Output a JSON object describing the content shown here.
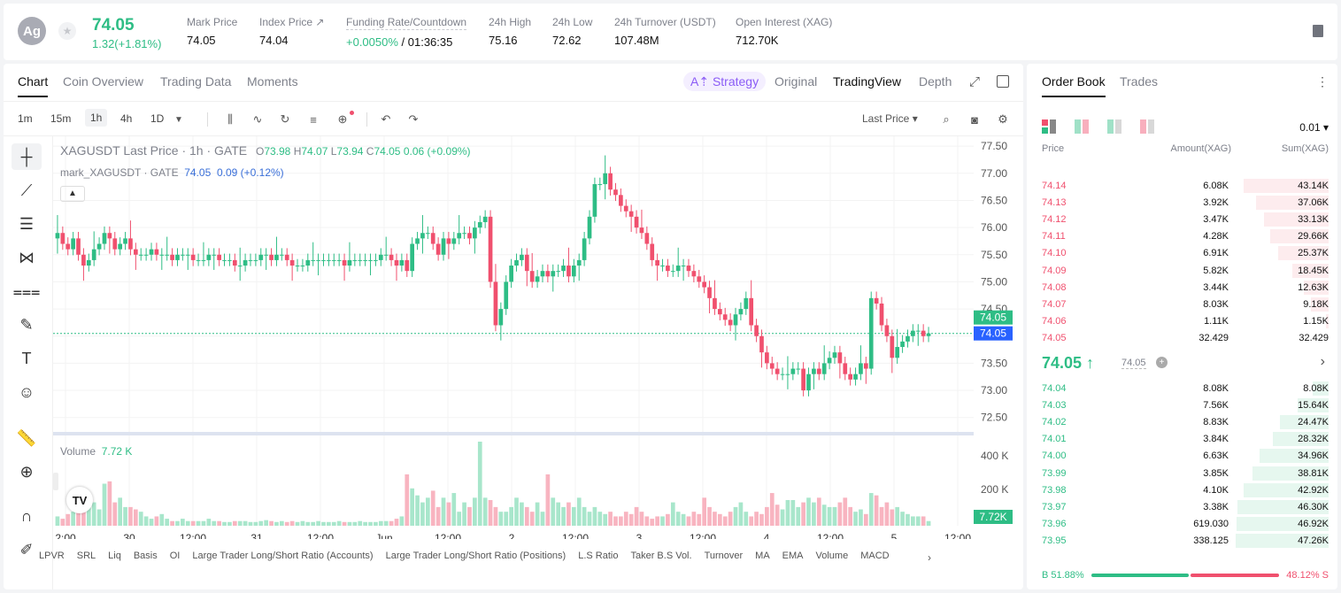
{
  "header": {
    "avatar": "Ag",
    "last_price": "74.05",
    "change": "1.32(+1.81%)",
    "stats": [
      {
        "label": "Mark Price",
        "value": "74.05"
      },
      {
        "label": "Index Price ↗",
        "value": "74.04"
      },
      {
        "label": "Funding Rate/Countdown",
        "value_green": "+0.0050%",
        "value": " / 01:36:35"
      },
      {
        "label": "24h High",
        "value": "75.16"
      },
      {
        "label": "24h Low",
        "value": "72.62"
      },
      {
        "label": "24h Turnover (USDT)",
        "value": "107.48M"
      },
      {
        "label": "Open Interest (XAG)",
        "value": "712.70K"
      }
    ]
  },
  "chart_tabs": [
    "Chart",
    "Coin Overview",
    "Trading Data",
    "Moments"
  ],
  "view_tabs": {
    "strategy": "A⇡ Strategy",
    "original": "Original",
    "tradingview": "TradingView",
    "depth": "Depth"
  },
  "timeframes": [
    "1m",
    "15m",
    "1h",
    "4h",
    "1D"
  ],
  "toolbar": {
    "price_type": "Last Price ▾"
  },
  "legend": {
    "title": "XAGUSDT Last Price · 1h · GATE",
    "o": "73.98",
    "h": "74.07",
    "l": "73.94",
    "c": "74.05",
    "chg": "0.06 (+0.09%)",
    "mark": "mark_XAGUSDT · GATE",
    "mark_val": "74.05",
    "mark_chg": "0.09 (+0.12%)",
    "volume_label": "Volume",
    "volume_val": "7.72 K"
  },
  "indicators": [
    "LPVR",
    "SRL",
    "Liq",
    "Basis",
    "OI",
    "Large Trader Long/Short Ratio (Accounts)",
    "Large Trader Long/Short Ratio (Positions)",
    "L.S Ratio",
    "Taker B.S Vol.",
    "Turnover",
    "MA",
    "EMA",
    "Volume",
    "MACD"
  ],
  "chart_data": {
    "type": "candlestick",
    "price_axis": [
      "77.50",
      "77.00",
      "76.50",
      "76.00",
      "75.50",
      "75.00",
      "74.50",
      "74.00",
      "73.50",
      "73.00",
      "72.50"
    ],
    "time_axis": [
      "2:00",
      "30",
      "12:00",
      "31",
      "12:00",
      "Jun",
      "12:00",
      "2",
      "12:00",
      "3",
      "12:00",
      "4",
      "12:00",
      "5",
      "12:00"
    ],
    "volume_axis": [
      "400 K",
      "200 K"
    ],
    "last_price_tag": "74.05",
    "mark_price_tag": "74.05",
    "volume_tag": "7.72K",
    "ylim": [
      72.3,
      77.6
    ],
    "closes": [
      75.9,
      75.7,
      75.6,
      75.8,
      75.5,
      75.3,
      75.4,
      75.6,
      75.7,
      75.9,
      75.8,
      75.6,
      75.7,
      75.8,
      75.6,
      75.5,
      75.5,
      75.5,
      75.6,
      75.5,
      75.5,
      75.5,
      75.4,
      75.5,
      75.5,
      75.5,
      75.4,
      75.4,
      75.4,
      75.5,
      75.5,
      75.4,
      75.4,
      75.4,
      75.3,
      75.3,
      75.4,
      75.4,
      75.4,
      75.5,
      75.5,
      75.4,
      75.5,
      75.5,
      75.4,
      75.3,
      75.3,
      75.3,
      75.4,
      75.4,
      75.4,
      75.4,
      75.4,
      75.4,
      75.4,
      75.3,
      75.4,
      75.4,
      75.4,
      75.4,
      75.4,
      75.4,
      75.5,
      75.5,
      75.4,
      75.3,
      75.4,
      75.2,
      75.7,
      75.8,
      75.9,
      75.9,
      75.7,
      75.5,
      75.8,
      75.7,
      75.8,
      75.9,
      75.9,
      75.8,
      76.0,
      76.1,
      76.2,
      75.0,
      74.2,
      74.5,
      75.0,
      75.3,
      75.4,
      75.5,
      75.2,
      75.0,
      75.1,
      75.2,
      75.1,
      75.2,
      75.2,
      75.3,
      75.1,
      75.3,
      75.4,
      75.8,
      76.2,
      76.8,
      76.8,
      77.0,
      76.7,
      76.6,
      76.4,
      76.3,
      76.2,
      76.0,
      75.9,
      75.7,
      75.4,
      75.3,
      75.3,
      75.2,
      75.2,
      75.3,
      75.3,
      75.2,
      75.1,
      75.0,
      74.9,
      74.7,
      74.5,
      74.4,
      74.3,
      74.2,
      74.4,
      74.5,
      74.7,
      74.2,
      74.0,
      73.7,
      73.5,
      73.4,
      73.3,
      73.3,
      73.3,
      73.4,
      73.4,
      73.0,
      73.3,
      73.4,
      73.3,
      73.5,
      73.6,
      73.7,
      73.5,
      73.3,
      73.2,
      73.3,
      73.5,
      73.4,
      74.7,
      74.6,
      74.2,
      74.0,
      73.6,
      73.8,
      73.9,
      74.0,
      74.1,
      74.1,
      74.0,
      74.05
    ],
    "volumes": [
      20,
      15,
      25,
      30,
      40,
      35,
      60,
      50,
      35,
      90,
      95,
      50,
      60,
      40,
      40,
      35,
      30,
      20,
      15,
      20,
      25,
      15,
      10,
      10,
      15,
      10,
      10,
      10,
      10,
      15,
      10,
      10,
      8,
      8,
      10,
      10,
      10,
      8,
      8,
      10,
      12,
      10,
      8,
      10,
      8,
      10,
      8,
      10,
      8,
      8,
      10,
      8,
      8,
      8,
      10,
      8,
      8,
      8,
      10,
      8,
      8,
      8,
      10,
      10,
      10,
      15,
      20,
      110,
      80,
      65,
      50,
      60,
      75,
      40,
      60,
      50,
      70,
      30,
      50,
      40,
      60,
      180,
      60,
      55,
      40,
      30,
      30,
      40,
      60,
      50,
      40,
      30,
      50,
      30,
      110,
      60,
      50,
      40,
      50,
      40,
      60,
      40,
      30,
      40,
      30,
      25,
      30,
      20,
      20,
      30,
      25,
      40,
      30,
      20,
      15,
      20,
      20,
      25,
      50,
      30,
      25,
      20,
      30,
      25,
      60,
      40,
      30,
      25,
      20,
      30,
      40,
      50,
      30,
      20,
      30,
      25,
      40,
      70,
      45,
      35,
      55,
      55,
      40,
      50,
      60,
      50,
      60,
      45,
      40,
      40,
      50,
      60,
      40,
      30,
      35,
      25,
      70,
      65,
      40,
      50,
      35,
      40,
      30,
      25,
      20,
      20,
      20,
      10,
      5
    ]
  },
  "order_book": {
    "tabs": [
      "Order Book",
      "Trades"
    ],
    "precision": "0.01 ▾",
    "headers": {
      "price": "Price",
      "amount": "Amount(XAG)",
      "sum": "Sum(XAG)"
    },
    "asks": [
      {
        "price": "74.14",
        "amount": "6.08K",
        "sum": "43.14K",
        "depth": 0.91
      },
      {
        "price": "74.13",
        "amount": "3.92K",
        "sum": "37.06K",
        "depth": 0.78
      },
      {
        "price": "74.12",
        "amount": "3.47K",
        "sum": "33.13K",
        "depth": 0.7
      },
      {
        "price": "74.11",
        "amount": "4.28K",
        "sum": "29.66K",
        "depth": 0.63
      },
      {
        "price": "74.10",
        "amount": "6.91K",
        "sum": "25.37K",
        "depth": 0.54
      },
      {
        "price": "74.09",
        "amount": "5.82K",
        "sum": "18.45K",
        "depth": 0.39
      },
      {
        "price": "74.08",
        "amount": "3.44K",
        "sum": "12.63K",
        "depth": 0.27
      },
      {
        "price": "74.07",
        "amount": "8.03K",
        "sum": "9.18K",
        "depth": 0.19
      },
      {
        "price": "74.06",
        "amount": "1.11K",
        "sum": "1.15K",
        "depth": 0.03
      },
      {
        "price": "74.05",
        "amount": "32.429",
        "sum": "32.429",
        "depth": 0.0
      }
    ],
    "mid_price": "74.05 ↑",
    "mid_mark": "74.05",
    "bids": [
      {
        "price": "74.04",
        "amount": "8.08K",
        "sum": "8.08K",
        "depth": 0.17
      },
      {
        "price": "74.03",
        "amount": "7.56K",
        "sum": "15.64K",
        "depth": 0.33
      },
      {
        "price": "74.02",
        "amount": "8.83K",
        "sum": "24.47K",
        "depth": 0.52
      },
      {
        "price": "74.01",
        "amount": "3.84K",
        "sum": "28.32K",
        "depth": 0.6
      },
      {
        "price": "74.00",
        "amount": "6.63K",
        "sum": "34.96K",
        "depth": 0.74
      },
      {
        "price": "73.99",
        "amount": "3.85K",
        "sum": "38.81K",
        "depth": 0.82
      },
      {
        "price": "73.98",
        "amount": "4.10K",
        "sum": "42.92K",
        "depth": 0.91
      },
      {
        "price": "73.97",
        "amount": "3.38K",
        "sum": "46.30K",
        "depth": 0.98
      },
      {
        "price": "73.96",
        "amount": "619.030",
        "sum": "46.92K",
        "depth": 0.99
      },
      {
        "price": "73.95",
        "amount": "338.125",
        "sum": "47.26K",
        "depth": 1.0
      }
    ],
    "ratio": {
      "buy": "B 51.88%",
      "sell": "48.12% S",
      "buy_frac": 0.5188
    }
  }
}
